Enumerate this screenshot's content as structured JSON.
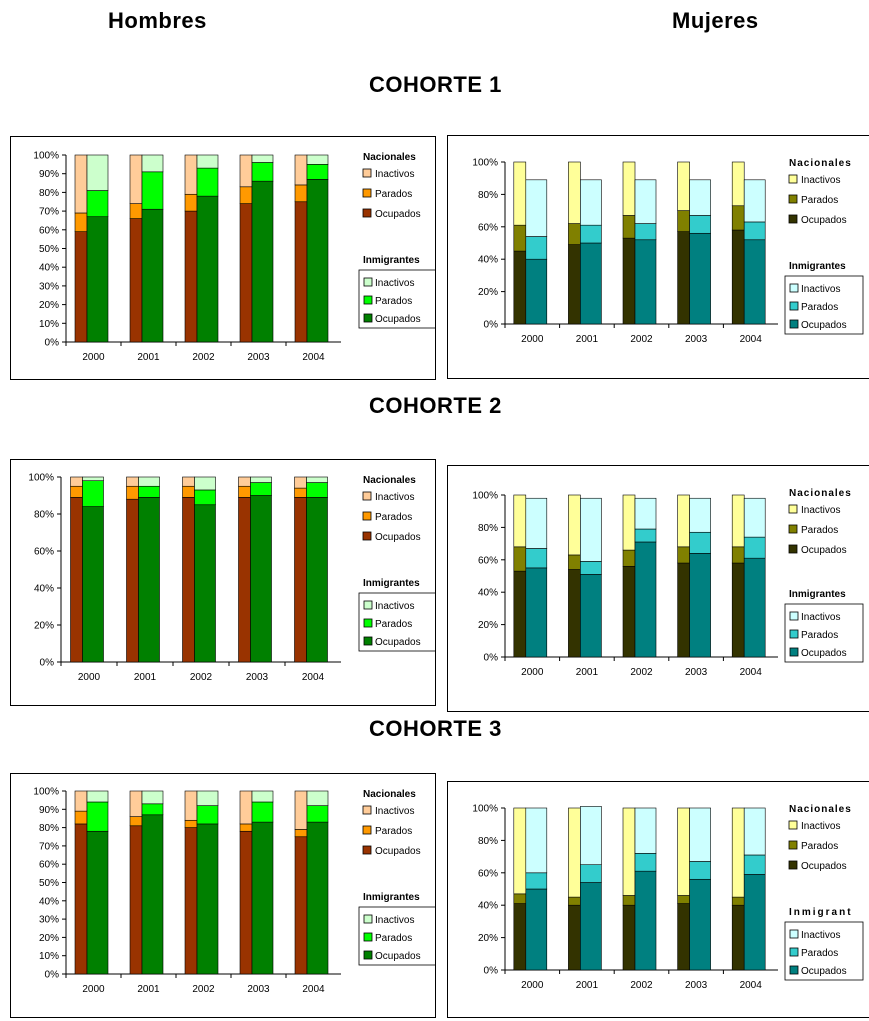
{
  "headers": {
    "men": "Hombres",
    "women": "Mujeres"
  },
  "cohorts": [
    "COHORTE 1",
    "COHORTE 2",
    "COHORTE 3"
  ],
  "colors": {
    "men": {
      "nac": [
        "#993300",
        "#ff9900",
        "#ffcc99"
      ],
      "inm": [
        "#008000",
        "#00ff00",
        "#ccffcc"
      ]
    },
    "women": {
      "nac": [
        "#333300",
        "#808000",
        "#ffff99"
      ],
      "inm": [
        "#008080",
        "#33cccc",
        "#ccffff"
      ]
    }
  },
  "chart_data": [
    {
      "type": "bar",
      "group": "Hombres",
      "cohort": "COHORTE 1",
      "categories": [
        "2000",
        "2001",
        "2002",
        "2003",
        "2004"
      ],
      "ylim": [
        0,
        100
      ],
      "yticks": [
        "0%",
        "10%",
        "20%",
        "30%",
        "40%",
        "50%",
        "60%",
        "70%",
        "80%",
        "90%",
        "100%"
      ],
      "legend": {
        "nac_title": "Nacionales",
        "inm_title": "Inmigrantes",
        "nac_items": [
          "Inactivos",
          "Parados",
          "Ocupados"
        ],
        "inm_items": [
          "Inactivos",
          "Parados",
          "Ocupados"
        ]
      },
      "series": [
        {
          "name": "Nacionales",
          "ocupados": [
            59,
            66,
            70,
            74,
            75
          ],
          "parados": [
            10,
            8,
            9,
            9,
            9
          ],
          "inactivos": [
            31,
            26,
            21,
            17,
            16
          ]
        },
        {
          "name": "Inmigrantes",
          "ocupados": [
            67,
            71,
            78,
            86,
            87
          ],
          "parados": [
            14,
            20,
            15,
            10,
            8
          ],
          "inactivos": [
            19,
            9,
            7,
            4,
            5
          ]
        }
      ]
    },
    {
      "type": "bar",
      "group": "Mujeres",
      "cohort": "COHORTE 1",
      "categories": [
        "2000",
        "2001",
        "2002",
        "2003",
        "2004"
      ],
      "ylim": [
        0,
        100
      ],
      "yticks": [
        "0%",
        "20%",
        "40%",
        "60%",
        "80%",
        "100%"
      ],
      "legend": {
        "nac_title": "Nacionales",
        "inm_title": "Inmigrantes",
        "nac_items": [
          "Inactivos",
          "Parados",
          "Ocupados"
        ],
        "inm_items": [
          "Inactivos",
          "Parados",
          "Ocupados"
        ]
      },
      "series": [
        {
          "name": "Nacionales",
          "ocupados": [
            45,
            49,
            53,
            57,
            58
          ],
          "parados": [
            16,
            13,
            14,
            13,
            15
          ],
          "inactivos": [
            39,
            38,
            33,
            30,
            27
          ]
        },
        {
          "name": "Inmigrantes",
          "ocupados": [
            40,
            50,
            52,
            56,
            52
          ],
          "parados": [
            14,
            11,
            10,
            11,
            11
          ],
          "inactivos": [
            35,
            28,
            27,
            22,
            26
          ]
        }
      ]
    },
    {
      "type": "bar",
      "group": "Hombres",
      "cohort": "COHORTE 2",
      "categories": [
        "2000",
        "2001",
        "2002",
        "2003",
        "2004"
      ],
      "ylim": [
        0,
        100
      ],
      "yticks": [
        "0%",
        "20%",
        "40%",
        "60%",
        "80%",
        "100%"
      ],
      "legend": {
        "nac_title": "Nacionales",
        "inm_title": "Inmigrantes",
        "nac_items": [
          "Inactivos",
          "Parados",
          "Ocupados"
        ],
        "inm_items": [
          "Inactivos",
          "Parados",
          "Ocupados"
        ]
      },
      "series": [
        {
          "name": "Nacionales",
          "ocupados": [
            89,
            88,
            89,
            89,
            89
          ],
          "parados": [
            6,
            7,
            6,
            6,
            5
          ],
          "inactivos": [
            5,
            5,
            5,
            5,
            6
          ]
        },
        {
          "name": "Inmigrantes",
          "ocupados": [
            84,
            89,
            85,
            90,
            89
          ],
          "parados": [
            14,
            6,
            8,
            7,
            8
          ],
          "inactivos": [
            2,
            5,
            7,
            3,
            3
          ]
        }
      ]
    },
    {
      "type": "bar",
      "group": "Mujeres",
      "cohort": "COHORTE 2",
      "categories": [
        "2000",
        "2001",
        "2002",
        "2003",
        "2004"
      ],
      "ylim": [
        0,
        100
      ],
      "yticks": [
        "0%",
        "20%",
        "40%",
        "60%",
        "80%",
        "100%"
      ],
      "legend": {
        "nac_title": "Nacionales",
        "inm_title": "Inmigrantes",
        "nac_items": [
          "Inactivos",
          "Parados",
          "Ocupados"
        ],
        "inm_items": [
          "Inactivos",
          "Parados",
          "Ocupados"
        ]
      },
      "series": [
        {
          "name": "Nacionales",
          "ocupados": [
            53,
            54,
            56,
            58,
            58
          ],
          "parados": [
            15,
            9,
            10,
            10,
            10
          ],
          "inactivos": [
            32,
            37,
            34,
            32,
            32
          ]
        },
        {
          "name": "Inmigrantes",
          "ocupados": [
            55,
            51,
            71,
            64,
            61
          ],
          "parados": [
            12,
            8,
            8,
            13,
            13
          ],
          "inactivos": [
            31,
            39,
            19,
            21,
            24
          ]
        }
      ]
    },
    {
      "type": "bar",
      "group": "Hombres",
      "cohort": "COHORTE 3",
      "categories": [
        "2000",
        "2001",
        "2002",
        "2003",
        "2004"
      ],
      "ylim": [
        0,
        100
      ],
      "yticks": [
        "0%",
        "10%",
        "20%",
        "30%",
        "40%",
        "50%",
        "60%",
        "70%",
        "80%",
        "90%",
        "100%"
      ],
      "legend": {
        "nac_title": "Nacionales",
        "inm_title": "Inmigrantes",
        "nac_items": [
          "Inactivos",
          "Parados",
          "Ocupados"
        ],
        "inm_items": [
          "Inactivos",
          "Parados",
          "Ocupados"
        ]
      },
      "series": [
        {
          "name": "Nacionales",
          "ocupados": [
            82,
            81,
            80,
            78,
            75
          ],
          "parados": [
            7,
            5,
            4,
            4,
            4
          ],
          "inactivos": [
            11,
            14,
            16,
            18,
            21
          ]
        },
        {
          "name": "Inmigrantes",
          "ocupados": [
            78,
            87,
            82,
            83,
            83
          ],
          "parados": [
            16,
            6,
            10,
            11,
            9
          ],
          "inactivos": [
            6,
            7,
            8,
            6,
            8
          ]
        }
      ]
    },
    {
      "type": "bar",
      "group": "Mujeres",
      "cohort": "COHORTE 3",
      "categories": [
        "2000",
        "2001",
        "2002",
        "2003",
        "2004"
      ],
      "ylim": [
        0,
        100
      ],
      "yticks": [
        "0%",
        "20%",
        "40%",
        "60%",
        "80%",
        "100%"
      ],
      "legend": {
        "nac_title": "Nacionales",
        "inm_title": "Inmigrant",
        "nac_items": [
          "Inactivos",
          "Parados",
          "Ocupados"
        ],
        "inm_items": [
          "Inactivos",
          "Parados",
          "Ocupados"
        ]
      },
      "series": [
        {
          "name": "Nacionales",
          "ocupados": [
            41,
            40,
            40,
            41,
            40
          ],
          "parados": [
            6,
            5,
            6,
            5,
            5
          ],
          "inactivos": [
            53,
            55,
            54,
            54,
            55
          ]
        },
        {
          "name": "Inmigrantes",
          "ocupados": [
            50,
            54,
            61,
            56,
            59
          ],
          "parados": [
            10,
            11,
            11,
            11,
            12
          ],
          "inactivos": [
            40,
            36,
            28,
            33,
            29
          ]
        }
      ]
    }
  ]
}
